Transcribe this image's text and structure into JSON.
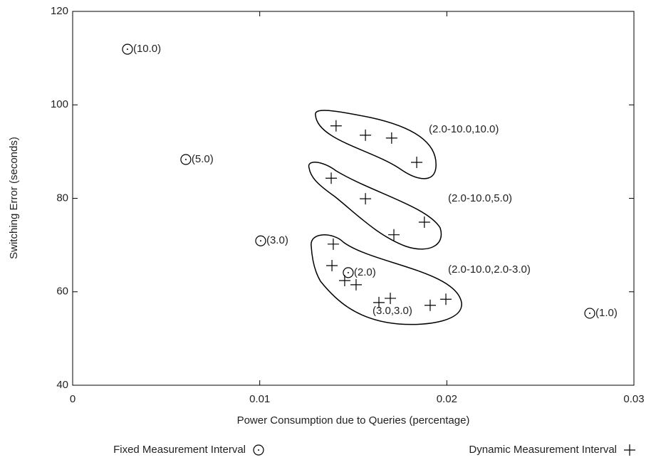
{
  "chart_data": {
    "type": "scatter",
    "x_label": "Power Consumption due to Queries (percentage)",
    "y_label": "Switching Error (seconds)",
    "xlim": [
      0,
      0.03
    ],
    "xticks": [
      0,
      0.01,
      0.02,
      0.03
    ],
    "ylim": [
      40,
      120
    ],
    "yticks": [
      40,
      60,
      80,
      100,
      120
    ],
    "grid": false,
    "legend": "bottom",
    "series": [
      {
        "name": "Fixed Measurement Interval",
        "marker": "circle",
        "color": "#000000",
        "x": [
          0.00293,
          0.00605,
          0.01005,
          0.01473,
          0.02764
        ],
        "values": [
          111.9,
          88.3,
          70.9,
          64.1,
          55.4
        ],
        "point_labels": [
          "(10.0)",
          "(5.0)",
          "(3.0)",
          "(2.0)",
          "(1.0)"
        ]
      },
      {
        "name": "Dynamic Measurement Interval",
        "marker": "plus",
        "color": "#000000",
        "x": [
          0.01408,
          0.01565,
          0.01705,
          0.01839,
          0.01382,
          0.01565,
          0.01717,
          0.0188,
          0.01393,
          0.01386,
          0.01454,
          0.01515,
          0.01637,
          0.01698,
          0.01911,
          0.01995
        ],
        "values": [
          95.5,
          93.5,
          92.9,
          87.7,
          84.3,
          79.9,
          72.2,
          74.9,
          70.2,
          65.6,
          62.4,
          61.5,
          57.7,
          58.6,
          57.1,
          58.4
        ]
      }
    ],
    "annotations": [
      "(2.0-10.0,10.0)",
      "(2.0-10.0,5.0)",
      "(2.0-10.0,2.0-3.0)",
      "(3.0,3.0)"
    ]
  }
}
